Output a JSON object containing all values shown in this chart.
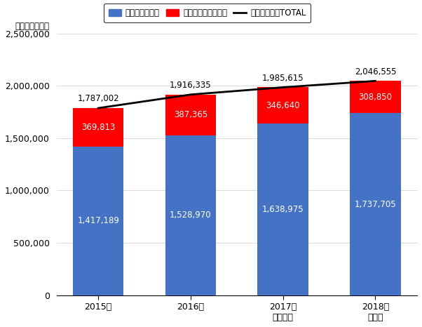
{
  "categories": [
    "2015年",
    "2016年",
    "2017年\n（見込）",
    "2018年\n（予）"
  ],
  "smartphone": [
    1417189,
    1528970,
    1638975,
    1737705
  ],
  "feature": [
    369813,
    387365,
    346640,
    308850
  ],
  "total": [
    1787002,
    1916335,
    1985615,
    2046555
  ],
  "bar_color_smartphone": "#4472C4",
  "bar_color_feature": "#FF0000",
  "line_color": "#000000",
  "ylim": [
    0,
    2500000
  ],
  "yticks": [
    0,
    500000,
    1000000,
    1500000,
    2000000,
    2500000
  ],
  "ylabel_unit": "（単位：千台）",
  "legend_smartphone": "スマートフォン",
  "legend_feature": "フィーチャーフォン",
  "legend_total": "ハンドセットTOTAL",
  "background_color": "#ffffff",
  "bar_width": 0.55
}
